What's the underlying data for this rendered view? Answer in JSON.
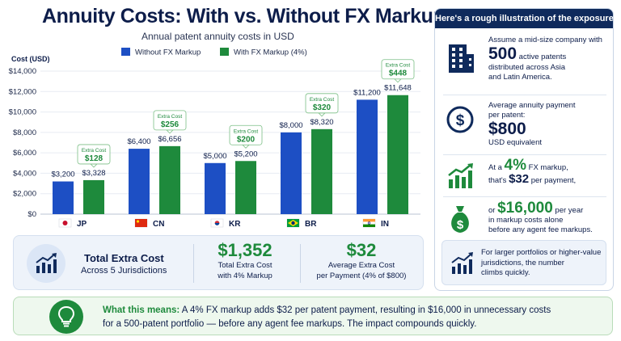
{
  "header": {
    "title": "Annuity Costs: With vs. Without FX Markup",
    "subtitle": "Annual patent annuity costs in USD"
  },
  "chart_data": {
    "type": "bar",
    "ylabel": "Cost (USD)",
    "ylim": [
      0,
      14000
    ],
    "yticks": [
      "$0",
      "$2,000",
      "$4,000",
      "$6,000",
      "$8,000",
      "$10,000",
      "$12,000",
      "$14,000"
    ],
    "grid": true,
    "legend_position": "top",
    "categories": [
      "JP",
      "CN",
      "KR",
      "BR",
      "IN"
    ],
    "series": [
      {
        "name": "Without FX Markup",
        "color": "#1d4fc4",
        "values": [
          3200,
          6400,
          5000,
          8000,
          11200
        ],
        "labels": [
          "$3,200",
          "$6,400",
          "$5,000",
          "$8,000",
          "$11,200"
        ]
      },
      {
        "name": "With FX Markup (4%)",
        "color": "#1e8a3c",
        "values": [
          3328,
          6656,
          5200,
          8320,
          11648
        ],
        "labels": [
          "$3,328",
          "$6,656",
          "$5,200",
          "$8,320",
          "$11,648"
        ]
      }
    ],
    "annotations": [
      {
        "label": "Extra Cost",
        "value": "$128"
      },
      {
        "label": "Extra Cost",
        "value": "$256"
      },
      {
        "label": "Extra Cost",
        "value": "$200"
      },
      {
        "label": "Extra Cost",
        "value": "$320"
      },
      {
        "label": "Extra Cost",
        "value": "$448"
      }
    ]
  },
  "summary": {
    "title": "Total Extra Cost",
    "subtitle": "Across 5 Jurisdictions",
    "m1_value": "$1,352",
    "m1_cap1": "Total Extra Cost",
    "m1_cap2": "with 4% Markup",
    "m2_value": "$32",
    "m2_cap1": "Average Extra Cost",
    "m2_cap2": "per Payment (4% of $800)"
  },
  "panel": {
    "title": "Here's a rough illustration of the exposure.",
    "r1_l1": "Assume a mid-size company with",
    "r1_num": "500",
    "r1_tail": " active patents",
    "r1_l3": "distributed across Asia",
    "r1_l4": "and Latin America.",
    "r2_l1": "Average annuity payment",
    "r2_l2": "per patent:",
    "r2_num": "$800",
    "r2_l4": "USD equivalent",
    "r3_pre": "At a ",
    "r3_num": "4%",
    "r3_post": " FX markup,",
    "r3_l2_pre": "that's ",
    "r3_l2_num": "$32",
    "r3_l2_post": " per payment,",
    "r4_pre": "or ",
    "r4_num": "$16,000",
    "r4_post": " per year",
    "r4_l2": "in markup costs alone",
    "r4_l3": "before any agent fee markups.",
    "note_l1": "For larger portfolios or higher-value",
    "note_l2": "jurisdictions, the number",
    "note_l3": "climbs quickly."
  },
  "meaning": {
    "head": "What this means:",
    "line1": " A 4% FX markup adds $32 per patent payment, resulting in $16,000 in unnecessary costs",
    "line2": "for a 500-patent portfolio — before any agent fee markups. The impact compounds quickly."
  }
}
